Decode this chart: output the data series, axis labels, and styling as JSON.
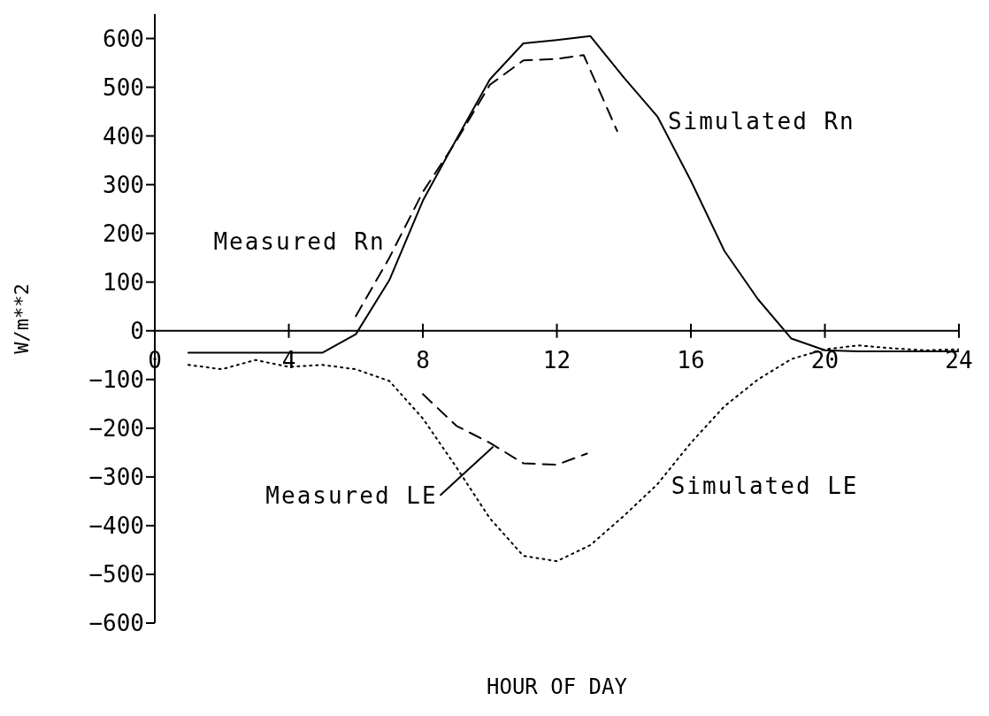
{
  "chart_data": {
    "type": "line",
    "xlabel": "HOUR OF DAY",
    "ylabel": "W/m**2",
    "xlim": [
      0,
      24
    ],
    "xticks": [
      0,
      4,
      8,
      12,
      16,
      20,
      24
    ],
    "ylim": [
      -600,
      650
    ],
    "yticks": [
      -600,
      -500,
      -400,
      -300,
      -200,
      -100,
      0,
      100,
      200,
      300,
      400,
      500,
      600
    ],
    "marker": "none",
    "series": [
      {
        "color": "#000000",
        "line_style": "solid",
        "x": [
          1,
          2,
          3,
          4,
          5,
          6,
          7,
          8,
          9,
          10,
          11,
          12,
          13,
          14,
          15,
          16,
          17,
          18,
          19,
          20,
          21,
          22,
          23,
          24
        ],
        "values": [
          -45,
          -45,
          -45,
          -45,
          -45,
          -7,
          104,
          267,
          393,
          516,
          590,
          597,
          605,
          520,
          440,
          308,
          164,
          65,
          -16,
          -40,
          -42,
          -42,
          -42,
          -42
        ]
      },
      {
        "color": "#000000",
        "line_style": "dashed",
        "x": [
          6,
          7,
          8,
          9,
          10,
          11,
          12,
          12.8,
          13.8
        ],
        "values": [
          30,
          150,
          285,
          390,
          505,
          555,
          558,
          566,
          410
        ]
      },
      {
        "color": "#000000",
        "line_style": "dotted",
        "x": [
          1,
          2,
          3,
          4,
          5,
          6,
          7,
          8,
          9,
          10,
          11,
          12,
          13,
          14,
          15,
          16,
          17,
          18,
          19,
          20,
          21,
          22,
          23,
          24
        ],
        "values": [
          -70,
          -79,
          -60,
          -74,
          -70,
          -79,
          -103,
          -180,
          -280,
          -385,
          -462,
          -473,
          -440,
          -380,
          -315,
          -230,
          -155,
          -100,
          -58,
          -38,
          -30,
          -36,
          -40,
          -38
        ]
      },
      {
        "color": "#000000",
        "line_style": "dashed",
        "x": [
          8,
          9,
          10,
          11,
          12,
          12.9
        ],
        "values": [
          -130,
          -195,
          -230,
          -272,
          -275,
          -252
        ]
      }
    ],
    "annotations": [
      {
        "text": "Measured Rn",
        "x": 7.25,
        "y": 176
      },
      {
        "text": "Simulated Rn",
        "x": 15.1,
        "y": 430
      },
      {
        "text": "Measured LE",
        "x": 10.1,
        "y": -238
      },
      {
        "text": "Simulated LE",
        "x": 15.2,
        "y": -300
      }
    ]
  }
}
